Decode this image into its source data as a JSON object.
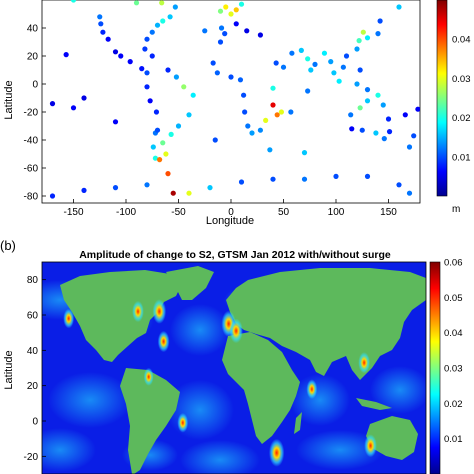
{
  "chart_data": [
    {
      "type": "scatter",
      "panel_label": "",
      "title": "",
      "xlabel": "Longitude",
      "ylabel": "Latitude",
      "xlim": [
        -180,
        180
      ],
      "ylim": [
        -85,
        60
      ],
      "xticks": [
        -150,
        -100,
        -50,
        0,
        50,
        100,
        150
      ],
      "yticks": [
        40,
        20,
        0,
        -20,
        -40,
        -60,
        -80
      ],
      "colorbar": {
        "unit": "m",
        "range": [
          0,
          0.05
        ],
        "ticks": [
          "0.04",
          "0.03",
          "0.02",
          "0.01"
        ],
        "colormap": "jet"
      },
      "series": [
        {
          "values": [
            {
              "x": -125,
              "y": 48,
              "v": 0.012
            },
            {
              "x": -124,
              "y": 43,
              "v": 0.01
            },
            {
              "x": -122,
              "y": 37,
              "v": 0.008
            },
            {
              "x": -117,
              "y": 32,
              "v": 0.006
            },
            {
              "x": -110,
              "y": 23,
              "v": 0.005
            },
            {
              "x": -105,
              "y": 20,
              "v": 0.006
            },
            {
              "x": -96,
              "y": 16,
              "v": 0.006
            },
            {
              "x": -85,
              "y": 11,
              "v": 0.007
            },
            {
              "x": -80,
              "y": 8,
              "v": 0.01
            },
            {
              "x": -80,
              "y": -2,
              "v": 0.008
            },
            {
              "x": -77,
              "y": -12,
              "v": 0.006
            },
            {
              "x": -71,
              "y": -20,
              "v": 0.008
            },
            {
              "x": -72,
              "y": -35,
              "v": 0.012
            },
            {
              "x": -74,
              "y": -45,
              "v": 0.016
            },
            {
              "x": -72,
              "y": -53,
              "v": 0.02
            },
            {
              "x": -68,
              "y": -54,
              "v": 0.038
            },
            {
              "x": -62,
              "y": -50,
              "v": 0.03
            },
            {
              "x": -65,
              "y": -42,
              "v": 0.024
            },
            {
              "x": -57,
              "y": -36,
              "v": 0.02
            },
            {
              "x": -50,
              "y": -30,
              "v": 0.015
            },
            {
              "x": -40,
              "y": -22,
              "v": 0.016
            },
            {
              "x": -36,
              "y": -8,
              "v": 0.018
            },
            {
              "x": -45,
              "y": -2,
              "v": 0.026
            },
            {
              "x": -52,
              "y": 5,
              "v": 0.014
            },
            {
              "x": -60,
              "y": 10,
              "v": 0.008
            },
            {
              "x": -75,
              "y": 20,
              "v": 0.008
            },
            {
              "x": -82,
              "y": 25,
              "v": 0.009
            },
            {
              "x": -80,
              "y": 32,
              "v": 0.01
            },
            {
              "x": -75,
              "y": 37,
              "v": 0.012
            },
            {
              "x": -70,
              "y": 42,
              "v": 0.015
            },
            {
              "x": -65,
              "y": 45,
              "v": 0.02
            },
            {
              "x": -58,
              "y": 48,
              "v": 0.016
            },
            {
              "x": -53,
              "y": 55,
              "v": 0.014
            },
            {
              "x": -66,
              "y": 58,
              "v": 0.028
            },
            {
              "x": -90,
              "y": 58,
              "v": 0.024
            },
            {
              "x": -150,
              "y": 60,
              "v": 0.02
            },
            {
              "x": -10,
              "y": 52,
              "v": 0.025
            },
            {
              "x": -5,
              "y": 55,
              "v": 0.032
            },
            {
              "x": 0,
              "y": 50,
              "v": 0.03
            },
            {
              "x": 5,
              "y": 53,
              "v": 0.034
            },
            {
              "x": 10,
              "y": 57,
              "v": 0.02
            },
            {
              "x": -9,
              "y": 40,
              "v": 0.012
            },
            {
              "x": -6,
              "y": 36,
              "v": 0.01
            },
            {
              "x": 5,
              "y": 43,
              "v": 0.006
            },
            {
              "x": 15,
              "y": 38,
              "v": 0.005
            },
            {
              "x": 28,
              "y": 35,
              "v": 0.005
            },
            {
              "x": -10,
              "y": 30,
              "v": 0.01
            },
            {
              "x": -17,
              "y": 15,
              "v": 0.01
            },
            {
              "x": -13,
              "y": 8,
              "v": 0.011
            },
            {
              "x": 0,
              "y": 5,
              "v": 0.01
            },
            {
              "x": 9,
              "y": 3,
              "v": 0.011
            },
            {
              "x": 12,
              "y": -8,
              "v": 0.01
            },
            {
              "x": 13,
              "y": -20,
              "v": 0.01
            },
            {
              "x": 16,
              "y": -30,
              "v": 0.012
            },
            {
              "x": 20,
              "y": -35,
              "v": 0.014
            },
            {
              "x": 28,
              "y": -33,
              "v": 0.013
            },
            {
              "x": 33,
              "y": -26,
              "v": 0.03
            },
            {
              "x": 40,
              "y": -15,
              "v": 0.045
            },
            {
              "x": 44,
              "y": -22,
              "v": 0.038
            },
            {
              "x": 48,
              "y": -20,
              "v": 0.03
            },
            {
              "x": 40,
              "y": -3,
              "v": 0.02
            },
            {
              "x": 50,
              "y": 12,
              "v": 0.012
            },
            {
              "x": 43,
              "y": 15,
              "v": 0.01
            },
            {
              "x": 58,
              "y": 22,
              "v": 0.012
            },
            {
              "x": 67,
              "y": 24,
              "v": 0.016
            },
            {
              "x": 73,
              "y": 18,
              "v": 0.02
            },
            {
              "x": 76,
              "y": 10,
              "v": 0.016
            },
            {
              "x": 80,
              "y": 14,
              "v": 0.012
            },
            {
              "x": 89,
              "y": 22,
              "v": 0.018
            },
            {
              "x": 95,
              "y": 16,
              "v": 0.014
            },
            {
              "x": 98,
              "y": 8,
              "v": 0.016
            },
            {
              "x": 103,
              "y": 2,
              "v": 0.018
            },
            {
              "x": 107,
              "y": 12,
              "v": 0.012
            },
            {
              "x": 110,
              "y": 20,
              "v": 0.01
            },
            {
              "x": 120,
              "y": 25,
              "v": 0.014
            },
            {
              "x": 122,
              "y": 31,
              "v": 0.022
            },
            {
              "x": 126,
              "y": 37,
              "v": 0.028
            },
            {
              "x": 130,
              "y": 33,
              "v": 0.018
            },
            {
              "x": 140,
              "y": 36,
              "v": 0.012
            },
            {
              "x": 142,
              "y": 45,
              "v": 0.01
            },
            {
              "x": 160,
              "y": 55,
              "v": 0.016
            },
            {
              "x": 123,
              "y": 10,
              "v": 0.01
            },
            {
              "x": 120,
              "y": 0,
              "v": 0.014
            },
            {
              "x": 130,
              "y": -4,
              "v": 0.012
            },
            {
              "x": 140,
              "y": -8,
              "v": 0.02
            },
            {
              "x": 145,
              "y": -15,
              "v": 0.014
            },
            {
              "x": 150,
              "y": -25,
              "v": 0.008
            },
            {
              "x": 151,
              "y": -34,
              "v": 0.008
            },
            {
              "x": 146,
              "y": -39,
              "v": 0.012
            },
            {
              "x": 138,
              "y": -35,
              "v": 0.016
            },
            {
              "x": 125,
              "y": -33,
              "v": 0.01
            },
            {
              "x": 115,
              "y": -32,
              "v": 0.006
            },
            {
              "x": 114,
              "y": -22,
              "v": 0.012
            },
            {
              "x": 123,
              "y": -17,
              "v": 0.024
            },
            {
              "x": 130,
              "y": -12,
              "v": 0.016
            },
            {
              "x": 174,
              "y": -37,
              "v": 0.01
            },
            {
              "x": 170,
              "y": -45,
              "v": 0.012
            },
            {
              "x": -157,
              "y": 21,
              "v": 0.006
            },
            {
              "x": -150,
              "y": -17,
              "v": 0.006
            },
            {
              "x": -170,
              "y": -14,
              "v": 0.005
            },
            {
              "x": 166,
              "y": -22,
              "v": 0.006
            },
            {
              "x": 178,
              "y": -18,
              "v": 0.006
            },
            {
              "x": -140,
              "y": -10,
              "v": 0.005
            },
            {
              "x": -110,
              "y": -27,
              "v": 0.006
            },
            {
              "x": -15,
              "y": -40,
              "v": 0.01
            },
            {
              "x": 57,
              "y": -20,
              "v": 0.012
            },
            {
              "x": 73,
              "y": -5,
              "v": 0.012
            },
            {
              "x": 70,
              "y": -49,
              "v": 0.016
            },
            {
              "x": 37,
              "y": -47,
              "v": 0.014
            },
            {
              "x": -70,
              "y": -33,
              "v": 0.01
            },
            {
              "x": -25,
              "y": 38,
              "v": 0.012
            },
            {
              "x": -170,
              "y": -80,
              "v": 0.008
            },
            {
              "x": -140,
              "y": -76,
              "v": 0.008
            },
            {
              "x": -110,
              "y": -74,
              "v": 0.01
            },
            {
              "x": -80,
              "y": -72,
              "v": 0.012
            },
            {
              "x": -60,
              "y": -64,
              "v": 0.04
            },
            {
              "x": -55,
              "y": -78,
              "v": 0.048
            },
            {
              "x": -40,
              "y": -78,
              "v": 0.03
            },
            {
              "x": -20,
              "y": -74,
              "v": 0.016
            },
            {
              "x": 10,
              "y": -70,
              "v": 0.01
            },
            {
              "x": 40,
              "y": -68,
              "v": 0.01
            },
            {
              "x": 70,
              "y": -68,
              "v": 0.012
            },
            {
              "x": 100,
              "y": -66,
              "v": 0.01
            },
            {
              "x": 130,
              "y": -66,
              "v": 0.01
            },
            {
              "x": 160,
              "y": -72,
              "v": 0.01
            },
            {
              "x": 170,
              "y": -78,
              "v": 0.012
            }
          ]
        }
      ]
    },
    {
      "type": "heatmap",
      "panel_label": "(b)",
      "title": "Amplitude of change to S2, GTSM Jan 2012 with/without surge",
      "xlabel": "",
      "ylabel": "Latitude",
      "xlim": [
        -180,
        180
      ],
      "ylim": [
        -30,
        90
      ],
      "yticks": [
        80,
        60,
        40,
        20,
        0,
        -20
      ],
      "colorbar": {
        "range": [
          0,
          0.06
        ],
        "ticks": [
          "0.06",
          "0.05",
          "0.04",
          "0.03",
          "0.02",
          "0.01"
        ],
        "colormap": "jet"
      },
      "land_color": "#5db95c",
      "hotspots": [
        {
          "x": -70,
          "y": 62,
          "v": 0.05
        },
        {
          "x": -5,
          "y": 55,
          "v": 0.055
        },
        {
          "x": 2,
          "y": 51,
          "v": 0.05
        },
        {
          "x": -66,
          "y": 45,
          "v": 0.04
        },
        {
          "x": 122,
          "y": 33,
          "v": 0.04
        },
        {
          "x": 40,
          "y": -18,
          "v": 0.06
        },
        {
          "x": 73,
          "y": 18,
          "v": 0.035
        },
        {
          "x": -155,
          "y": 58,
          "v": 0.035
        },
        {
          "x": -48,
          "y": -1,
          "v": 0.035
        },
        {
          "x": 128,
          "y": -14,
          "v": 0.045
        },
        {
          "x": -80,
          "y": 25,
          "v": 0.03
        },
        {
          "x": -90,
          "y": 62,
          "v": 0.04
        }
      ]
    }
  ]
}
